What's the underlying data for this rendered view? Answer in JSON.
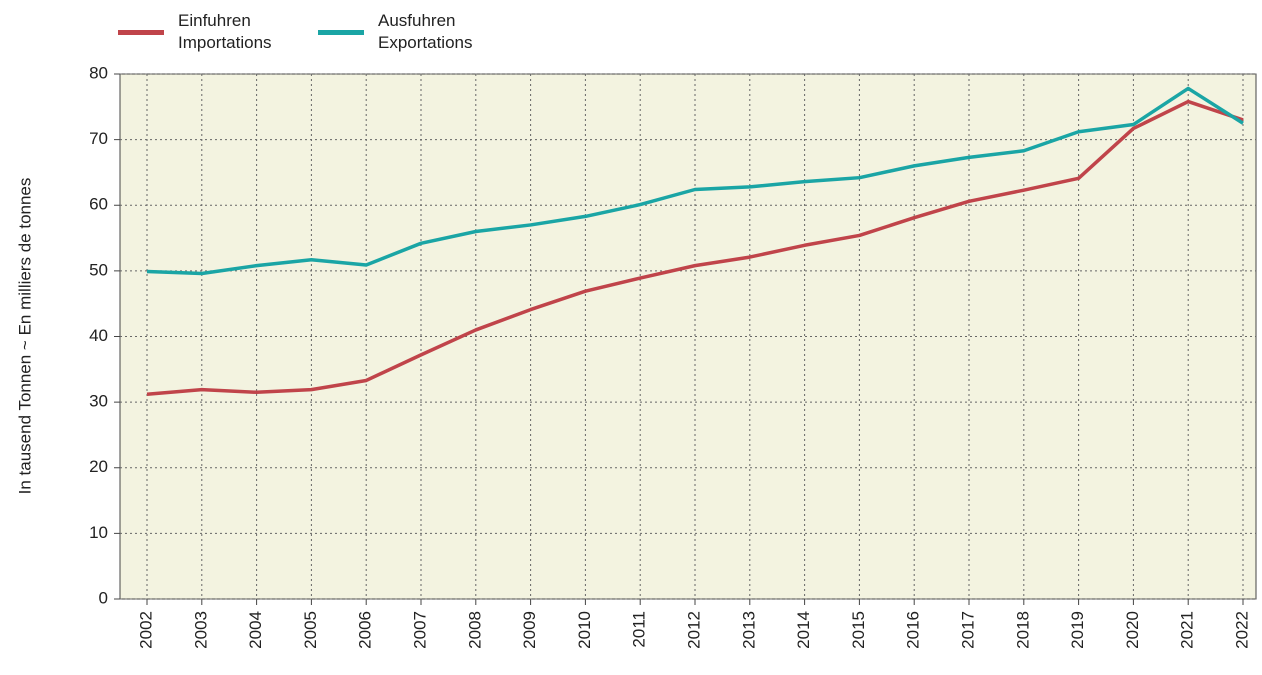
{
  "chart_data": {
    "type": "line",
    "ylabel": "In tausend Tonnen  ~  En milliers de tonnes",
    "categories": [
      "2002",
      "2003",
      "2004",
      "2005",
      "2006",
      "2007",
      "2008",
      "2009",
      "2010",
      "2011",
      "2012",
      "2013",
      "2014",
      "2015",
      "2016",
      "2017",
      "2018",
      "2019",
      "2020",
      "2021",
      "2022"
    ],
    "series": [
      {
        "name": "Einfuhren\nImportations",
        "color": "#c0444a",
        "values": [
          31.2,
          31.9,
          31.5,
          31.9,
          33.3,
          37.2,
          41.0,
          44.1,
          46.9,
          48.9,
          50.8,
          52.1,
          53.9,
          55.4,
          58.1,
          60.6,
          62.3,
          64.1,
          71.7,
          75.8,
          73.0
        ]
      },
      {
        "name": "Ausfuhren\nExportations",
        "color": "#1aa5a5",
        "values": [
          49.9,
          49.6,
          50.8,
          51.7,
          50.9,
          54.2,
          56.0,
          57.0,
          58.3,
          60.1,
          62.4,
          62.8,
          63.6,
          64.2,
          66.0,
          67.3,
          68.3,
          71.2,
          72.3,
          77.8,
          72.5
        ]
      }
    ],
    "ylim": [
      0,
      80
    ],
    "yticks": [
      0,
      10,
      20,
      30,
      40,
      50,
      60,
      70,
      80
    ],
    "grid": true
  }
}
